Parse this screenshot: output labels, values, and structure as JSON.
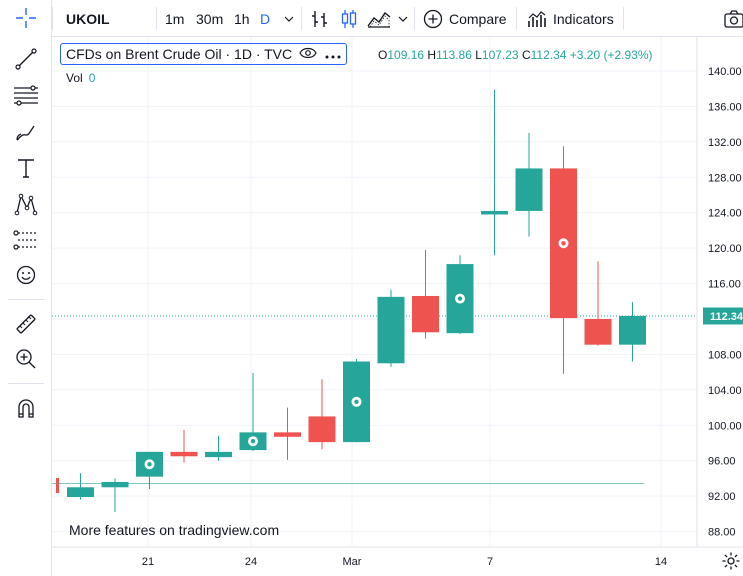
{
  "toolbar": {
    "symbol": "UKOIL",
    "intervals": [
      "1m",
      "30m",
      "1h",
      "D"
    ],
    "active_interval": "D",
    "compare_label": "Compare",
    "indicators_label": "Indicators"
  },
  "legend": {
    "title": "CFDs on Brent Crude Oil · 1D · TVC",
    "open_label": "O",
    "open": "109.16",
    "high_label": "H",
    "high": "113.86",
    "low_label": "L",
    "low": "107.23",
    "close_label": "C",
    "close": "112.34",
    "change": "+3.20 (+2.93%)",
    "vol_label": "Vol",
    "vol_value": "0"
  },
  "watermark": "More features on tradingview.com",
  "colors": {
    "up": "#26a69a",
    "down": "#ef5350",
    "accent": "#2962ff"
  },
  "chart_data": {
    "type": "candlestick",
    "y_ticks": [
      "140.00",
      "136.00",
      "132.00",
      "128.00",
      "124.00",
      "120.00",
      "116.00",
      "112.00",
      "108.00",
      "104.00",
      "100.00",
      "96.00",
      "92.00",
      "88.00"
    ],
    "x_ticks": [
      "21",
      "24",
      "Mar",
      "7",
      "14"
    ],
    "last_price_label": "112.34",
    "candles": [
      {
        "o": 91.9,
        "h": 94.6,
        "l": 91.6,
        "c": 93.0,
        "mark": false
      },
      {
        "o": 93.0,
        "h": 94.0,
        "l": 90.2,
        "c": 93.6,
        "mark": false
      },
      {
        "o": 94.2,
        "h": 97.0,
        "l": 92.8,
        "c": 97.0,
        "mark": true
      },
      {
        "o": 97.0,
        "h": 99.5,
        "l": 95.8,
        "c": 96.5,
        "mark": false
      },
      {
        "o": 96.4,
        "h": 98.8,
        "l": 96.0,
        "c": 97.0,
        "mark": false
      },
      {
        "o": 97.2,
        "h": 105.9,
        "l": 97.1,
        "c": 99.2,
        "mark": true
      },
      {
        "o": 99.2,
        "h": 102.0,
        "l": 96.1,
        "c": 98.7,
        "mark": false
      },
      {
        "o": 101.0,
        "h": 105.2,
        "l": 97.3,
        "c": 98.1,
        "mark": false
      },
      {
        "o": 98.1,
        "h": 107.5,
        "l": 98.1,
        "c": 107.2,
        "mark": true
      },
      {
        "o": 107.0,
        "h": 115.3,
        "l": 106.6,
        "c": 114.5,
        "mark": false
      },
      {
        "o": 114.6,
        "h": 119.8,
        "l": 109.8,
        "c": 110.5,
        "mark": false
      },
      {
        "o": 110.4,
        "h": 119.2,
        "l": 110.3,
        "c": 118.2,
        "mark": true
      },
      {
        "o": 123.8,
        "h": 137.9,
        "l": 119.2,
        "c": 124.2,
        "mark": false
      },
      {
        "o": 124.2,
        "h": 133.0,
        "l": 121.3,
        "c": 129.0,
        "mark": false
      },
      {
        "o": 129.0,
        "h": 131.5,
        "l": 105.8,
        "c": 112.1,
        "mark": true
      },
      {
        "o": 112.0,
        "h": 118.5,
        "l": 109.0,
        "c": 109.1,
        "mark": false
      },
      {
        "o": 109.1,
        "h": 113.9,
        "l": 107.2,
        "c": 112.34,
        "mark": false
      }
    ]
  }
}
